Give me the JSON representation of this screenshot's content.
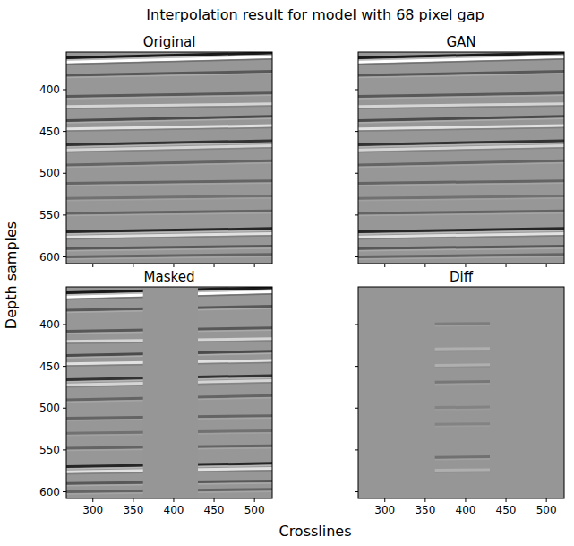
{
  "chart_data": {
    "type": "image_grid",
    "title": "Interpolation result for model with 68 pixel gap",
    "xlabel": "Crosslines",
    "ylabel": "Depth samples",
    "xlim": [
      267,
      522
    ],
    "ylim": [
      355,
      608
    ],
    "xticks": [
      300,
      350,
      400,
      450,
      500
    ],
    "yticks": [
      400,
      450,
      500,
      550,
      600
    ],
    "vlim": [
      -1,
      1
    ],
    "gap": [
      362,
      430
    ],
    "panels": [
      {
        "name": "Original",
        "type": "image"
      },
      {
        "name": "GAN",
        "type": "image"
      },
      {
        "name": "Masked",
        "type": "masked"
      },
      {
        "name": "Diff",
        "type": "diff"
      }
    ],
    "horizons": [
      {
        "depth": [
          362,
          356
        ],
        "amp": 1
      },
      {
        "depth": [
          367,
          361
        ],
        "amp": -1
      },
      {
        "depth": [
          383,
          378
        ],
        "amp": 0.5
      },
      {
        "depth": [
          408,
          404
        ],
        "amp": 0.5
      },
      {
        "depth": [
          420,
          417
        ],
        "amp": -0.5
      },
      {
        "depth": [
          437,
          432
        ],
        "amp": 0.6
      },
      {
        "depth": [
          447,
          443
        ],
        "amp": -0.6
      },
      {
        "depth": [
          466,
          461
        ],
        "amp": 0.8
      },
      {
        "depth": [
          472,
          467
        ],
        "amp": -0.5
      },
      {
        "depth": [
          490,
          485
        ],
        "amp": 0.4
      },
      {
        "depth": [
          512,
          509
        ],
        "amp": 0.4
      },
      {
        "depth": [
          530,
          527
        ],
        "amp": 0.3
      },
      {
        "depth": [
          548,
          545
        ],
        "amp": 0.4
      },
      {
        "depth": [
          570,
          566
        ],
        "amp": 0.9
      },
      {
        "depth": [
          576,
          572
        ],
        "amp": -0.6
      },
      {
        "depth": [
          590,
          587
        ],
        "amp": 0.5
      },
      {
        "depth": [
          600,
          597
        ],
        "amp": 0.4
      }
    ],
    "diff_horizons": [
      {
        "depth": [
          400,
          398
        ],
        "amp": 0.2
      },
      {
        "depth": [
          430,
          428
        ],
        "amp": -0.2
      },
      {
        "depth": [
          450,
          447
        ],
        "amp": -0.2
      },
      {
        "depth": [
          470,
          467
        ],
        "amp": 0.25
      },
      {
        "depth": [
          500,
          498
        ],
        "amp": 0.15
      },
      {
        "depth": [
          520,
          518
        ],
        "amp": 0.15
      },
      {
        "depth": [
          560,
          557
        ],
        "amp": 0.3
      },
      {
        "depth": [
          575,
          573
        ],
        "amp": -0.2
      }
    ]
  }
}
